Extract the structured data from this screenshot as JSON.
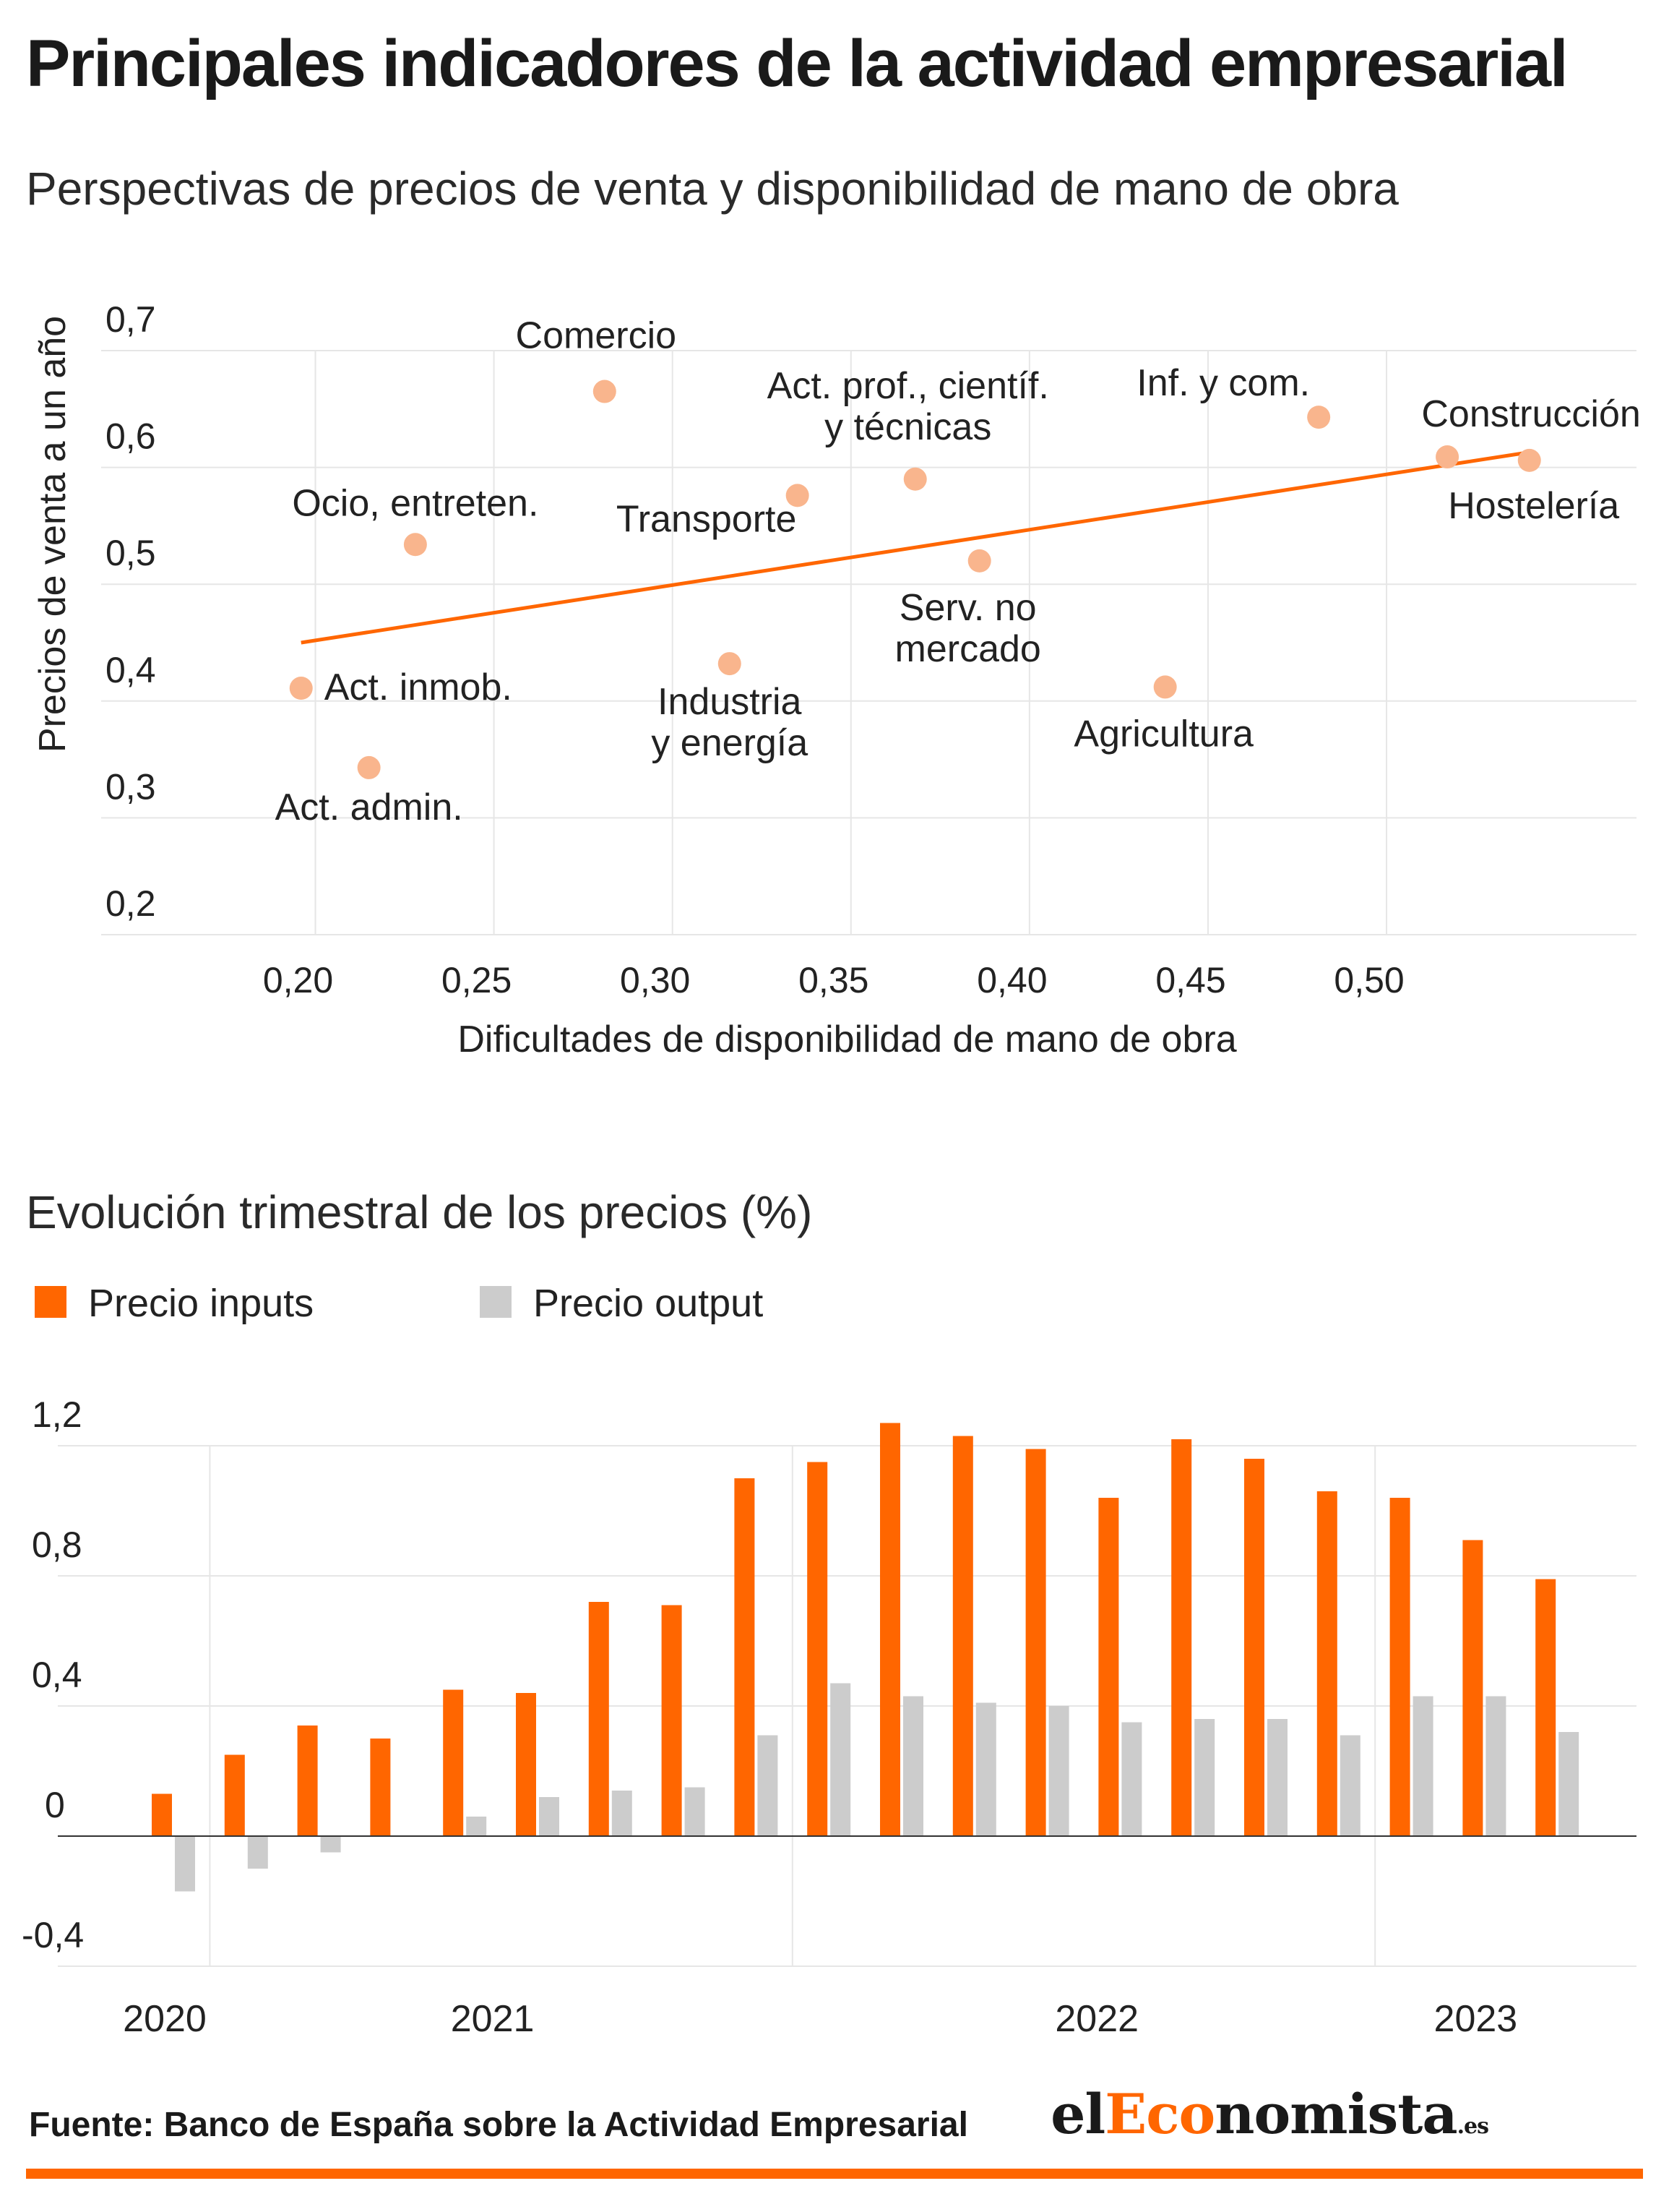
{
  "header": {
    "title": "Principales indicadores de la actividad empresarial",
    "scatter_subtitle": "Perspectivas de precios de venta y disponibilidad de mano de obra",
    "bar_subtitle": "Evolución trimestral de los precios (%)"
  },
  "legend": {
    "inputs_label": "Precio inputs",
    "output_label": "Precio output"
  },
  "footer": {
    "source": "Fuente: Banco de España sobre la Actividad Empresarial",
    "logo_el": "el",
    "logo_eco": "Eco",
    "logo_nomista": "nomista",
    "logo_es": ".es"
  },
  "colors": {
    "accent": "#ff6600",
    "dot": "#f9b58d",
    "trend": "#ff6600",
    "grey": "#cccccc",
    "grid": "#e6e6e6"
  },
  "chart_data": [
    {
      "type": "scatter",
      "xlabel": "Dificultades de disponibilidad de mano de obra",
      "ylabel": "Precios de venta a un año",
      "xlim": [
        0.14,
        0.57
      ],
      "ylim": [
        0.2,
        0.7
      ],
      "xticks": [
        "0,20",
        "0,25",
        "0,30",
        "0,35",
        "0,40",
        "0,45",
        "0,50"
      ],
      "xtick_values": [
        0.2,
        0.25,
        0.3,
        0.35,
        0.4,
        0.45,
        0.5
      ],
      "yticks": [
        "0,2",
        "0,3",
        "0,4",
        "0,5",
        "0,6",
        "0,7"
      ],
      "ytick_values": [
        0.2,
        0.3,
        0.4,
        0.5,
        0.6,
        0.7
      ],
      "points": [
        {
          "label": [
            "Comercio"
          ],
          "x": 0.281,
          "y": 0.665
        },
        {
          "label": [
            "Act. prof., científ.",
            "y técnicas"
          ],
          "x": 0.368,
          "y": 0.59
        },
        {
          "label": [
            "Inf. y com."
          ],
          "x": 0.481,
          "y": 0.643
        },
        {
          "label": [
            "Construcción"
          ],
          "x": 0.517,
          "y": 0.609
        },
        {
          "label": [
            "Hostelería"
          ],
          "x": 0.54,
          "y": 0.606
        },
        {
          "label": [
            "Transporte"
          ],
          "x": 0.335,
          "y": 0.576
        },
        {
          "label": [
            "Ocio, entreten."
          ],
          "x": 0.228,
          "y": 0.534
        },
        {
          "label": [
            "Serv. no",
            "mercado"
          ],
          "x": 0.386,
          "y": 0.52
        },
        {
          "label": [
            "Industria",
            "y energía"
          ],
          "x": 0.316,
          "y": 0.432
        },
        {
          "label": [
            "Act. inmob."
          ],
          "x": 0.196,
          "y": 0.411
        },
        {
          "label": [
            "Agricultura"
          ],
          "x": 0.438,
          "y": 0.412
        },
        {
          "label": [
            "Act. admin."
          ],
          "x": 0.215,
          "y": 0.343
        }
      ],
      "trendline": {
        "x": [
          0.196,
          0.54
        ],
        "y": [
          0.45,
          0.613
        ]
      },
      "grid": true
    },
    {
      "type": "bar",
      "ylim": [
        -0.4,
        1.2
      ],
      "yticks": [
        "1,2",
        "0,8",
        "0,4",
        "0",
        "-0,4"
      ],
      "ytick_values": [
        1.2,
        0.8,
        0.4,
        0,
        -0.4
      ],
      "year_labels": [
        "2020",
        "2021",
        "2022",
        "2023"
      ],
      "year_label_index": [
        0,
        4.5,
        12.8,
        18
      ],
      "separators_after_index": [
        0.5,
        8.5,
        16.5
      ],
      "series": [
        {
          "name": "Precio inputs",
          "values": [
            0.13,
            0.25,
            0.34,
            0.3,
            0.45,
            0.44,
            0.72,
            0.71,
            1.1,
            1.15,
            1.27,
            1.23,
            1.19,
            1.04,
            1.22,
            1.16,
            1.06,
            1.04,
            0.91,
            0.79
          ]
        },
        {
          "name": "Precio output",
          "values": [
            -0.17,
            -0.1,
            -0.05,
            0.0,
            0.06,
            0.12,
            0.14,
            0.15,
            0.31,
            0.47,
            0.43,
            0.41,
            0.4,
            0.35,
            0.36,
            0.36,
            0.31,
            0.43,
            0.43,
            0.32
          ]
        }
      ],
      "grid": true
    }
  ]
}
